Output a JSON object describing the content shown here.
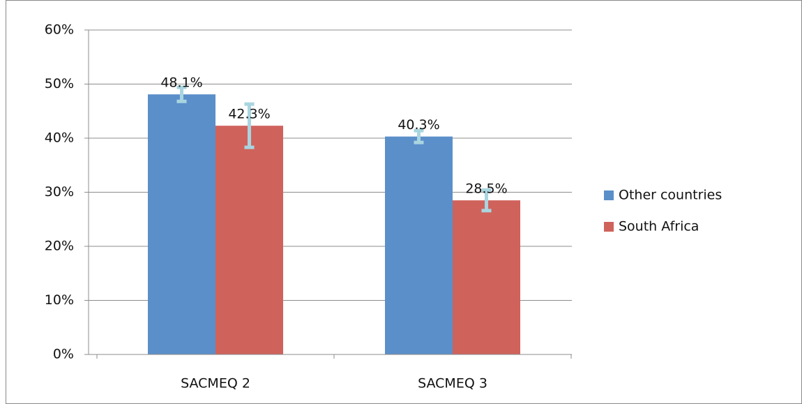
{
  "chart_data": {
    "type": "bar",
    "categories": [
      "SACMEQ 2",
      "SACMEQ 3"
    ],
    "series": [
      {
        "name": "Other countries",
        "color": "#5b8fca",
        "values": [
          48.1,
          40.3
        ],
        "value_labels": [
          "48.1%",
          "40.3%"
        ],
        "errors": [
          1.3,
          1.1
        ]
      },
      {
        "name": "South Africa",
        "color": "#d0625c",
        "values": [
          42.3,
          28.5
        ],
        "value_labels": [
          "42.3%",
          "28.5%"
        ],
        "errors": [
          4,
          1.9
        ]
      }
    ],
    "error_color": "#a9d5e0",
    "ylim": [
      0,
      60
    ],
    "yticks": [
      {
        "value": 0,
        "label": "0%"
      },
      {
        "value": 10,
        "label": "10%"
      },
      {
        "value": 20,
        "label": "20%"
      },
      {
        "value": 30,
        "label": "30%"
      },
      {
        "value": 40,
        "label": "40%"
      },
      {
        "value": 50,
        "label": "50%"
      },
      {
        "value": 60,
        "label": "60%"
      }
    ],
    "grid": true,
    "legend": "right"
  }
}
